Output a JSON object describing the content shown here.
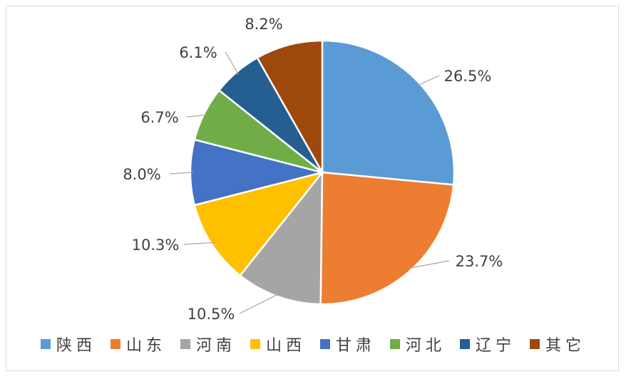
{
  "chart_data": {
    "type": "pie",
    "title": "",
    "legend_position": "bottom",
    "series": [
      {
        "categories": [
          "陕西",
          "山东",
          "河南",
          "山西",
          "甘肃",
          "河北",
          "辽宁",
          "其它"
        ],
        "values": [
          26.5,
          23.7,
          10.5,
          10.3,
          8.0,
          6.7,
          6.1,
          8.2
        ],
        "data_labels": [
          "26.5%",
          "23.7%",
          "10.5%",
          "10.3%",
          "8.0%",
          "6.7%",
          "6.1%",
          "8.2%"
        ],
        "colors": [
          "#5b9bd5",
          "#ed7d31",
          "#a5a5a5",
          "#ffc000",
          "#4472c4",
          "#70ad47",
          "#255e91",
          "#9e480e"
        ]
      }
    ]
  }
}
